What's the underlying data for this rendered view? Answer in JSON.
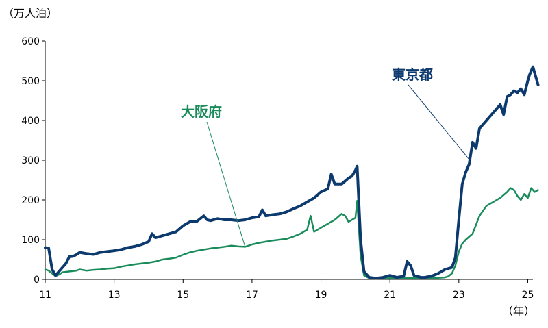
{
  "chart_data": {
    "type": "line",
    "y_unit": "（万人泊）",
    "x_unit": "（年）",
    "ylim": [
      0,
      600
    ],
    "xlim": [
      2011,
      2025.15
    ],
    "y_ticks": [
      0,
      100,
      200,
      300,
      400,
      500,
      600
    ],
    "x_ticks": [
      2011,
      2013,
      2015,
      2017,
      2019,
      2021,
      2023,
      2025
    ],
    "x_tick_labels": [
      "11",
      "13",
      "15",
      "17",
      "19",
      "21",
      "23",
      "25"
    ],
    "grid": false,
    "series": [
      {
        "name": "東京都",
        "color": "#0d3a6e",
        "points": [
          [
            2011.0,
            80
          ],
          [
            2011.1,
            79
          ],
          [
            2011.2,
            25
          ],
          [
            2011.3,
            10
          ],
          [
            2011.4,
            20
          ],
          [
            2011.5,
            30
          ],
          [
            2011.6,
            40
          ],
          [
            2011.7,
            57
          ],
          [
            2011.8,
            58
          ],
          [
            2011.9,
            62
          ],
          [
            2012.0,
            68
          ],
          [
            2012.2,
            65
          ],
          [
            2012.4,
            63
          ],
          [
            2012.6,
            68
          ],
          [
            2012.8,
            70
          ],
          [
            2013.0,
            72
          ],
          [
            2013.2,
            75
          ],
          [
            2013.4,
            80
          ],
          [
            2013.6,
            83
          ],
          [
            2013.8,
            88
          ],
          [
            2014.0,
            95
          ],
          [
            2014.1,
            115
          ],
          [
            2014.2,
            105
          ],
          [
            2014.4,
            110
          ],
          [
            2014.6,
            115
          ],
          [
            2014.8,
            120
          ],
          [
            2015.0,
            135
          ],
          [
            2015.2,
            145
          ],
          [
            2015.4,
            146
          ],
          [
            2015.6,
            160
          ],
          [
            2015.7,
            150
          ],
          [
            2015.8,
            148
          ],
          [
            2016.0,
            153
          ],
          [
            2016.2,
            150
          ],
          [
            2016.4,
            150
          ],
          [
            2016.6,
            148
          ],
          [
            2016.8,
            150
          ],
          [
            2017.0,
            155
          ],
          [
            2017.2,
            158
          ],
          [
            2017.3,
            175
          ],
          [
            2017.4,
            160
          ],
          [
            2017.6,
            163
          ],
          [
            2017.8,
            165
          ],
          [
            2018.0,
            170
          ],
          [
            2018.2,
            178
          ],
          [
            2018.4,
            185
          ],
          [
            2018.6,
            195
          ],
          [
            2018.8,
            205
          ],
          [
            2019.0,
            220
          ],
          [
            2019.2,
            228
          ],
          [
            2019.3,
            265
          ],
          [
            2019.4,
            240
          ],
          [
            2019.6,
            240
          ],
          [
            2019.8,
            255
          ],
          [
            2019.9,
            260
          ],
          [
            2020.0,
            275
          ],
          [
            2020.05,
            285
          ],
          [
            2020.15,
            100
          ],
          [
            2020.25,
            20
          ],
          [
            2020.4,
            5
          ],
          [
            2020.6,
            3
          ],
          [
            2020.8,
            5
          ],
          [
            2021.0,
            10
          ],
          [
            2021.2,
            5
          ],
          [
            2021.4,
            8
          ],
          [
            2021.5,
            45
          ],
          [
            2021.6,
            35
          ],
          [
            2021.7,
            10
          ],
          [
            2021.9,
            5
          ],
          [
            2022.0,
            5
          ],
          [
            2022.2,
            8
          ],
          [
            2022.4,
            15
          ],
          [
            2022.6,
            25
          ],
          [
            2022.8,
            30
          ],
          [
            2022.9,
            55
          ],
          [
            2023.0,
            150
          ],
          [
            2023.1,
            240
          ],
          [
            2023.2,
            270
          ],
          [
            2023.3,
            290
          ],
          [
            2023.4,
            345
          ],
          [
            2023.5,
            330
          ],
          [
            2023.6,
            380
          ],
          [
            2023.8,
            400
          ],
          [
            2023.9,
            410
          ],
          [
            2024.0,
            420
          ],
          [
            2024.1,
            430
          ],
          [
            2024.2,
            440
          ],
          [
            2024.3,
            415
          ],
          [
            2024.4,
            460
          ],
          [
            2024.5,
            465
          ],
          [
            2024.6,
            475
          ],
          [
            2024.7,
            470
          ],
          [
            2024.8,
            480
          ],
          [
            2024.9,
            465
          ],
          [
            2025.0,
            500
          ],
          [
            2025.05,
            515
          ],
          [
            2025.15,
            535
          ],
          [
            2025.25,
            505
          ],
          [
            2025.3,
            490
          ]
        ]
      },
      {
        "name": "大阪府",
        "color": "#1a8c5c",
        "points": [
          [
            2011.0,
            25
          ],
          [
            2011.1,
            22
          ],
          [
            2011.2,
            15
          ],
          [
            2011.3,
            8
          ],
          [
            2011.4,
            12
          ],
          [
            2011.5,
            18
          ],
          [
            2011.7,
            20
          ],
          [
            2011.9,
            22
          ],
          [
            2012.0,
            25
          ],
          [
            2012.2,
            22
          ],
          [
            2012.4,
            24
          ],
          [
            2012.6,
            25
          ],
          [
            2012.8,
            27
          ],
          [
            2013.0,
            28
          ],
          [
            2013.2,
            32
          ],
          [
            2013.4,
            35
          ],
          [
            2013.6,
            38
          ],
          [
            2013.8,
            40
          ],
          [
            2014.0,
            42
          ],
          [
            2014.2,
            45
          ],
          [
            2014.4,
            50
          ],
          [
            2014.6,
            52
          ],
          [
            2014.8,
            55
          ],
          [
            2015.0,
            62
          ],
          [
            2015.2,
            68
          ],
          [
            2015.4,
            72
          ],
          [
            2015.6,
            75
          ],
          [
            2015.8,
            78
          ],
          [
            2016.0,
            80
          ],
          [
            2016.2,
            82
          ],
          [
            2016.4,
            85
          ],
          [
            2016.6,
            83
          ],
          [
            2016.8,
            82
          ],
          [
            2017.0,
            88
          ],
          [
            2017.2,
            92
          ],
          [
            2017.4,
            95
          ],
          [
            2017.6,
            98
          ],
          [
            2017.8,
            100
          ],
          [
            2018.0,
            102
          ],
          [
            2018.2,
            108
          ],
          [
            2018.4,
            115
          ],
          [
            2018.6,
            125
          ],
          [
            2018.7,
            160
          ],
          [
            2018.8,
            120
          ],
          [
            2019.0,
            130
          ],
          [
            2019.2,
            140
          ],
          [
            2019.4,
            150
          ],
          [
            2019.6,
            165
          ],
          [
            2019.7,
            160
          ],
          [
            2019.8,
            145
          ],
          [
            2019.9,
            150
          ],
          [
            2020.0,
            155
          ],
          [
            2020.05,
            198
          ],
          [
            2020.15,
            60
          ],
          [
            2020.25,
            10
          ],
          [
            2020.4,
            3
          ],
          [
            2020.6,
            2
          ],
          [
            2020.8,
            2
          ],
          [
            2021.0,
            3
          ],
          [
            2021.4,
            3
          ],
          [
            2021.8,
            3
          ],
          [
            2022.2,
            3
          ],
          [
            2022.6,
            5
          ],
          [
            2022.7,
            8
          ],
          [
            2022.8,
            15
          ],
          [
            2022.9,
            35
          ],
          [
            2023.0,
            70
          ],
          [
            2023.1,
            90
          ],
          [
            2023.2,
            100
          ],
          [
            2023.4,
            115
          ],
          [
            2023.6,
            160
          ],
          [
            2023.8,
            185
          ],
          [
            2024.0,
            195
          ],
          [
            2024.2,
            205
          ],
          [
            2024.4,
            220
          ],
          [
            2024.5,
            230
          ],
          [
            2024.6,
            225
          ],
          [
            2024.7,
            210
          ],
          [
            2024.8,
            200
          ],
          [
            2024.9,
            215
          ],
          [
            2025.0,
            205
          ],
          [
            2025.1,
            230
          ],
          [
            2025.2,
            220
          ],
          [
            2025.3,
            225
          ]
        ]
      }
    ]
  }
}
